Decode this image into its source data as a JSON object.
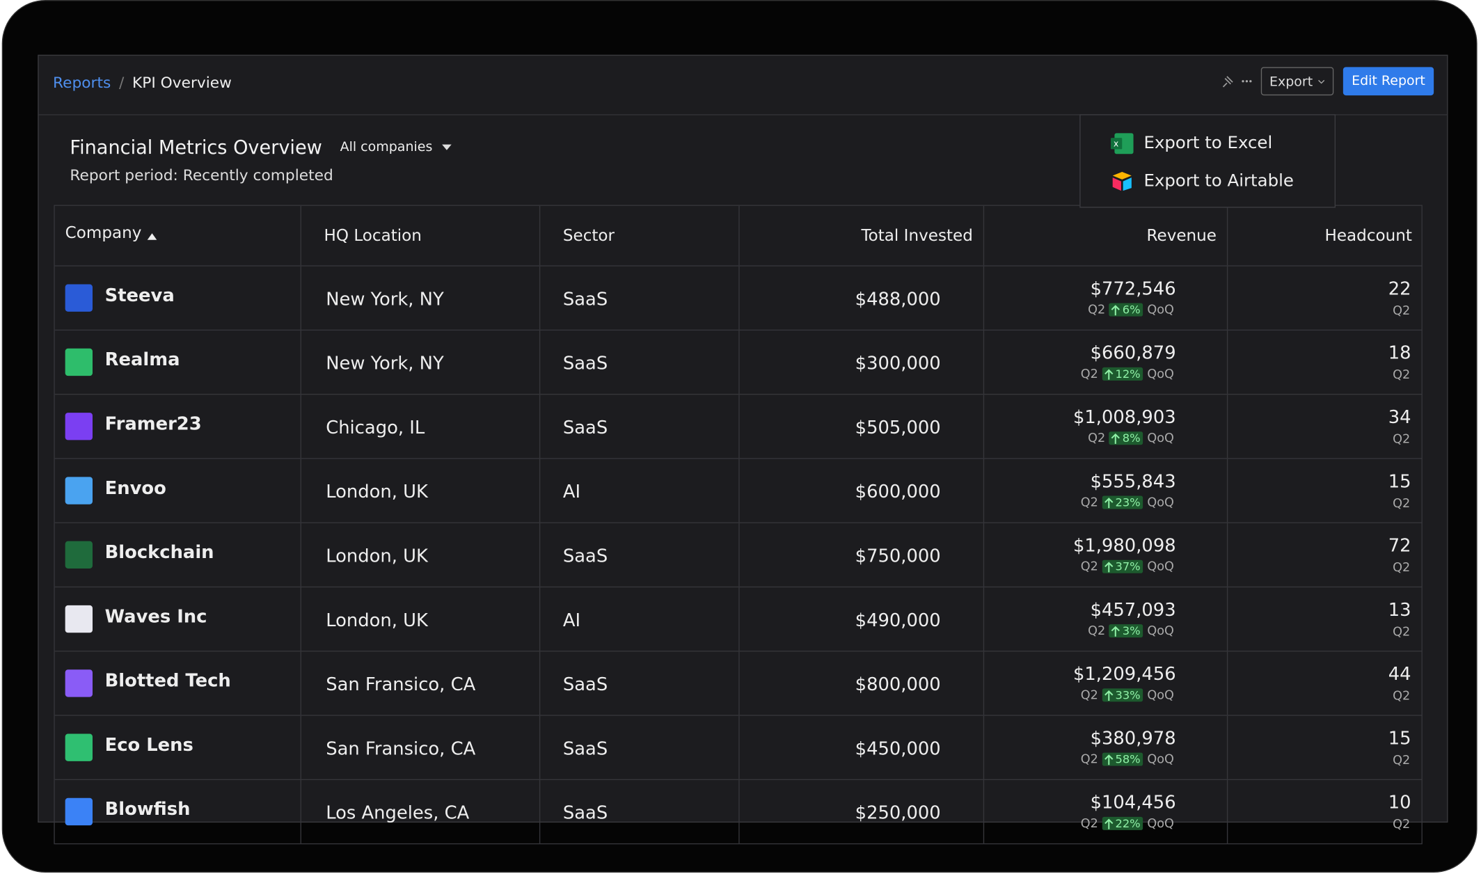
{
  "header": {
    "breadcrumb_root": "Reports",
    "breadcrumb_current": "KPI Overview",
    "export_button": "Export",
    "edit_button": "Edit Report"
  },
  "report": {
    "title": "Financial Metrics Overview",
    "filter": "All companies",
    "period": "Report period: Recently completed"
  },
  "export_menu": {
    "items": [
      "Export to Excel",
      "Export to Airtable"
    ]
  },
  "table": {
    "columns": [
      "Company",
      "HQ Location",
      "Sector",
      "Total Invested",
      "Revenue",
      "Headcount"
    ],
    "rows": [
      {
        "company": "Steeva",
        "location": "New York, NY",
        "sector": "SaaS",
        "invested": "$488,000",
        "revenue": "$772,546",
        "period": "Q2",
        "change": "6%",
        "change_label": "QoQ",
        "headcount": "22",
        "headcount_period": "Q2"
      },
      {
        "company": "Realma",
        "location": "New York, NY",
        "sector": "SaaS",
        "invested": "$300,000",
        "revenue": "$660,879",
        "period": "Q2",
        "change": "12%",
        "change_label": "QoQ",
        "headcount": "18",
        "headcount_period": "Q2"
      },
      {
        "company": "Framer23",
        "location": "Chicago, IL",
        "sector": "SaaS",
        "invested": "$505,000",
        "revenue": "$1,008,903",
        "period": "Q2",
        "change": "8%",
        "change_label": "QoQ",
        "headcount": "34",
        "headcount_period": "Q2"
      },
      {
        "company": "Envoo",
        "location": "London, UK",
        "sector": "AI",
        "invested": "$600,000",
        "revenue": "$555,843",
        "period": "Q2",
        "change": "23%",
        "change_label": "QoQ",
        "headcount": "15",
        "headcount_period": "Q2"
      },
      {
        "company": "Blockchain",
        "location": "London, UK",
        "sector": "SaaS",
        "invested": "$750,000",
        "revenue": "$1,980,098",
        "period": "Q2",
        "change": "37%",
        "change_label": "QoQ",
        "headcount": "72",
        "headcount_period": "Q2"
      },
      {
        "company": "Waves Inc",
        "location": "London, UK",
        "sector": "AI",
        "invested": "$490,000",
        "revenue": "$457,093",
        "period": "Q2",
        "change": "3%",
        "change_label": "QoQ",
        "headcount": "13",
        "headcount_period": "Q2"
      },
      {
        "company": "Blotted Tech",
        "location": "San Fransico, CA",
        "sector": "SaaS",
        "invested": "$800,000",
        "revenue": "$1,209,456",
        "period": "Q2",
        "change": "33%",
        "change_label": "QoQ",
        "headcount": "44",
        "headcount_period": "Q2"
      },
      {
        "company": "Eco Lens",
        "location": "San Fransico, CA",
        "sector": "SaaS",
        "invested": "$450,000",
        "revenue": "$380,978",
        "period": "Q2",
        "change": "58%",
        "change_label": "QoQ",
        "headcount": "15",
        "headcount_period": "Q2"
      },
      {
        "company": "Blowfish",
        "location": "Los Angeles, CA",
        "sector": "SaaS",
        "invested": "$250,000",
        "revenue": "$104,456",
        "period": "Q2",
        "change": "22%",
        "change_label": "QoQ",
        "headcount": "10",
        "headcount_period": "Q2"
      }
    ]
  }
}
